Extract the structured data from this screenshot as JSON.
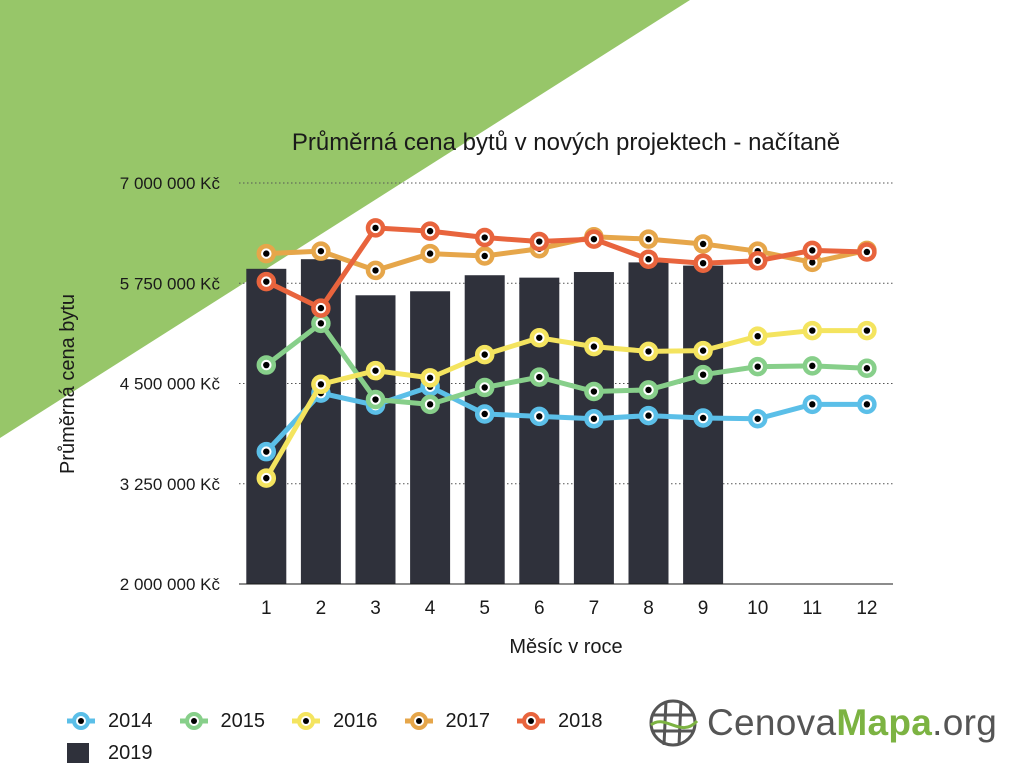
{
  "colors": {
    "background_accent": "#97c669",
    "bar": "#2f313b",
    "gridline": "#555555"
  },
  "legend": [
    {
      "label": "2014",
      "color": "#5bbfe8",
      "kind": "line"
    },
    {
      "label": "2015",
      "color": "#87cf8a",
      "kind": "line"
    },
    {
      "label": "2016",
      "color": "#f4e45f",
      "kind": "line"
    },
    {
      "label": "2017",
      "color": "#e6a64a",
      "kind": "line"
    },
    {
      "label": "2018",
      "color": "#e8643d",
      "kind": "line"
    },
    {
      "label": "2019",
      "color": "#2f313b",
      "kind": "bar"
    }
  ],
  "logo": {
    "icon": "globe-grid-icon",
    "part1": "Cenova",
    "part2": "Mapa",
    "part3": ".org"
  },
  "chart_data": {
    "type": "line",
    "title": "Průměrná cena bytů v nových projektech - načítaně",
    "xlabel": "Měsíc v roce",
    "ylabel": "Průměrná cena bytu",
    "categories": [
      "1",
      "2",
      "3",
      "4",
      "5",
      "6",
      "7",
      "8",
      "9",
      "10",
      "11",
      "12"
    ],
    "ylim": [
      2000000,
      7000000
    ],
    "yticks": [
      2000000,
      3250000,
      4500000,
      5750000,
      7000000
    ],
    "ytick_labels": [
      "2 000 000 Kč",
      "3 250 000 Kč",
      "4 500 000 Kč",
      "5 750 000 Kč",
      "7 000 000 Kč"
    ],
    "grid": "horizontal dotted",
    "legend_position": "bottom-left",
    "bars": {
      "name": "2019",
      "color": "#2f313b",
      "values": [
        5930000,
        6050000,
        5600000,
        5650000,
        5850000,
        5820000,
        5890000,
        6010000,
        5970000,
        null,
        null,
        null
      ]
    },
    "series": [
      {
        "name": "2014",
        "color": "#5bbfe8",
        "values": [
          3650000,
          4380000,
          4230000,
          4460000,
          4120000,
          4090000,
          4060000,
          4100000,
          4070000,
          4060000,
          4240000,
          4240000
        ]
      },
      {
        "name": "2015",
        "color": "#87cf8a",
        "values": [
          4730000,
          5250000,
          4300000,
          4240000,
          4450000,
          4580000,
          4400000,
          4420000,
          4610000,
          4710000,
          4720000,
          4690000
        ]
      },
      {
        "name": "2016",
        "color": "#f4e45f",
        "values": [
          3320000,
          4490000,
          4660000,
          4570000,
          4860000,
          5070000,
          4960000,
          4900000,
          4910000,
          5090000,
          5160000,
          5160000
        ]
      },
      {
        "name": "2017",
        "color": "#e6a64a",
        "values": [
          6120000,
          6150000,
          5910000,
          6120000,
          6090000,
          6180000,
          6330000,
          6300000,
          6240000,
          6150000,
          6010000,
          6160000
        ]
      },
      {
        "name": "2018",
        "color": "#e8643d",
        "values": [
          5770000,
          5440000,
          6440000,
          6400000,
          6320000,
          6270000,
          6300000,
          6050000,
          6000000,
          6030000,
          6160000,
          6140000
        ]
      }
    ]
  }
}
